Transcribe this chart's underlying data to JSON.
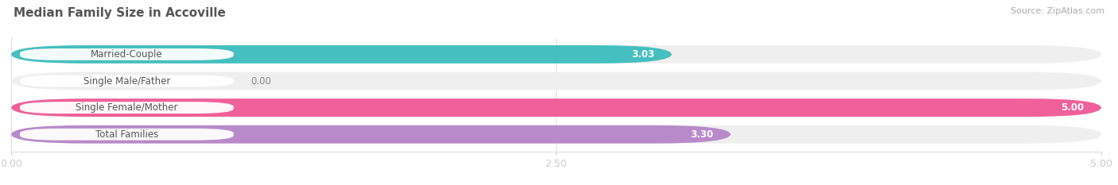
{
  "title": "Median Family Size in Accoville",
  "source": "Source: ZipAtlas.com",
  "categories": [
    "Married-Couple",
    "Single Male/Father",
    "Single Female/Mother",
    "Total Families"
  ],
  "values": [
    3.03,
    0.0,
    5.0,
    3.3
  ],
  "bar_colors": [
    "#45bfbf",
    "#a8b8e8",
    "#f0609a",
    "#b88aca"
  ],
  "bar_bg_color": "#efefef",
  "value_inside": [
    true,
    false,
    true,
    true
  ],
  "xlim": [
    0,
    5.0
  ],
  "xticks": [
    0.0,
    2.5,
    5.0
  ],
  "xtick_labels": [
    "0.00",
    "2.50",
    "5.00"
  ],
  "figsize": [
    14.06,
    2.33
  ],
  "dpi": 100
}
